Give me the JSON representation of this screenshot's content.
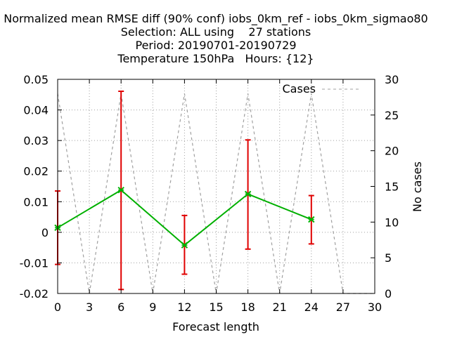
{
  "chart_data": {
    "type": "line",
    "title_lines": [
      "Normalized mean RMSE diff (90% conf) iobs_0km_ref - iobs_0km_sigmao80",
      "Selection: ALL using    27 stations",
      "Period: 20190701-20190729",
      "Temperature 150hPa   Hours: {12}"
    ],
    "xlabel": "Forecast length",
    "ylabel": "",
    "y2label": "No cases",
    "xlim": [
      0,
      30
    ],
    "ylim": [
      -0.02,
      0.05
    ],
    "y2lim": [
      0,
      30
    ],
    "xticks": [
      0,
      3,
      6,
      9,
      12,
      15,
      18,
      21,
      24,
      27,
      30
    ],
    "yticks": [
      -0.02,
      -0.01,
      0,
      0.01,
      0.02,
      0.03,
      0.04,
      0.05
    ],
    "ytick_labels": [
      "-0.02",
      "-0.01",
      "0",
      "0.01",
      "0.02",
      "0.03",
      "0.04",
      "0.05"
    ],
    "y2ticks": [
      0,
      5,
      10,
      15,
      20,
      25,
      30
    ],
    "grid": true,
    "legend_position": "top-right",
    "series": [
      {
        "name": "",
        "color": "#00b000",
        "errorbar_color": "#e00000",
        "x": [
          0,
          6,
          12,
          18,
          24
        ],
        "values": [
          0.0015,
          0.0138,
          -0.0042,
          0.0125,
          0.0042
        ],
        "err_low": [
          -0.0105,
          -0.0187,
          -0.0137,
          -0.0055,
          -0.0038
        ],
        "err_high": [
          0.0135,
          0.0461,
          0.0055,
          0.0302,
          0.012
        ]
      },
      {
        "name": "Cases",
        "axis": "y2",
        "color": "#a0a0a0",
        "dashed": true,
        "x": [
          0,
          3,
          6,
          9,
          12,
          15,
          18,
          21,
          24,
          27,
          30
        ],
        "values": [
          28,
          0,
          28,
          0,
          28,
          0,
          28,
          0,
          28,
          0,
          0
        ]
      }
    ]
  }
}
